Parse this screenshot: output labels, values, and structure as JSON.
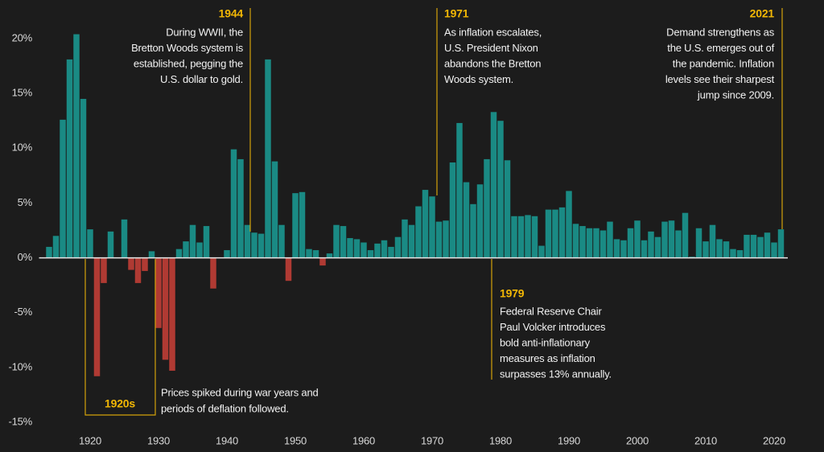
{
  "chart_data": {
    "type": "bar",
    "x": [
      1914,
      1915,
      1916,
      1917,
      1918,
      1919,
      1920,
      1921,
      1922,
      1923,
      1924,
      1925,
      1926,
      1927,
      1928,
      1929,
      1930,
      1931,
      1932,
      1933,
      1934,
      1935,
      1936,
      1937,
      1938,
      1939,
      1940,
      1941,
      1942,
      1943,
      1944,
      1945,
      1946,
      1947,
      1948,
      1949,
      1950,
      1951,
      1952,
      1953,
      1954,
      1955,
      1956,
      1957,
      1958,
      1959,
      1960,
      1961,
      1962,
      1963,
      1964,
      1965,
      1966,
      1967,
      1968,
      1969,
      1970,
      1971,
      1972,
      1973,
      1974,
      1975,
      1976,
      1977,
      1978,
      1979,
      1980,
      1981,
      1982,
      1983,
      1984,
      1985,
      1986,
      1987,
      1988,
      1989,
      1990,
      1991,
      1992,
      1993,
      1994,
      1995,
      1996,
      1997,
      1998,
      1999,
      2000,
      2001,
      2002,
      2003,
      2004,
      2005,
      2006,
      2007,
      2008,
      2009,
      2010,
      2011,
      2012,
      2013,
      2014,
      2015,
      2016,
      2017,
      2018,
      2019,
      2020,
      2021
    ],
    "values": [
      1.0,
      2.0,
      12.6,
      18.1,
      20.4,
      14.5,
      2.6,
      -10.8,
      -2.3,
      2.4,
      0.0,
      3.5,
      -1.1,
      -2.3,
      -1.2,
      0.6,
      -6.4,
      -9.3,
      -10.3,
      0.8,
      1.5,
      3.0,
      1.4,
      2.9,
      -2.8,
      0.0,
      0.7,
      9.9,
      9.0,
      3.0,
      2.3,
      2.2,
      18.1,
      8.8,
      3.0,
      -2.1,
      5.9,
      6.0,
      0.8,
      0.7,
      -0.7,
      0.4,
      3.0,
      2.9,
      1.8,
      1.7,
      1.4,
      0.7,
      1.3,
      1.6,
      1.0,
      1.9,
      3.5,
      3.0,
      4.7,
      6.2,
      5.6,
      3.3,
      3.4,
      8.7,
      12.3,
      6.9,
      4.9,
      6.7,
      9.0,
      13.3,
      12.5,
      8.9,
      3.8,
      3.8,
      3.9,
      3.8,
      1.1,
      4.4,
      4.4,
      4.6,
      6.1,
      3.1,
      2.9,
      2.7,
      2.7,
      2.5,
      3.3,
      1.7,
      1.6,
      2.7,
      3.4,
      1.6,
      2.4,
      1.9,
      3.3,
      3.4,
      2.5,
      4.1,
      0.1,
      2.7,
      1.5,
      3.0,
      1.7,
      1.5,
      0.8,
      0.7,
      2.1,
      2.1,
      1.9,
      2.3,
      1.4,
      2.6
    ],
    "positive_color": "#1a8a84",
    "negative_color": "#b03a33",
    "xlim": [
      1913,
      2022
    ],
    "xticks": [
      1920,
      1930,
      1940,
      1950,
      1960,
      1970,
      1980,
      1990,
      2000,
      2010,
      2020
    ],
    "ylim": [
      -15,
      20
    ],
    "yticks": [
      {
        "value": 20,
        "label": "20%"
      },
      {
        "value": 15,
        "label": "15%"
      },
      {
        "value": 10,
        "label": "10%"
      },
      {
        "value": 5,
        "label": "5%"
      },
      {
        "value": 0,
        "label": "0%"
      },
      {
        "value": -5,
        "label": "-5%"
      },
      {
        "value": -10,
        "label": "-10%"
      },
      {
        "value": -15,
        "label": "-15%"
      }
    ],
    "annotations": [
      {
        "title": "1944",
        "lines": [
          "During WWII, the",
          "Bretton Woods system is",
          "established, pegging the",
          "U.S. dollar to gold."
        ]
      },
      {
        "title": "1971",
        "lines": [
          "As inflation escalates,",
          "U.S. President Nixon",
          "abandons the Bretton",
          "Woods system."
        ]
      },
      {
        "title": "2021",
        "lines": [
          "Demand strengthens as",
          "the U.S. emerges out of",
          "the pandemic. Inflation",
          "levels see their sharpest",
          "jump since 2009."
        ]
      },
      {
        "title": "1979",
        "lines": [
          "Federal Reserve Chair",
          "Paul Volcker introduces",
          "bold anti-inflationary",
          "measures as inflation",
          "surpasses 13% annually."
        ]
      },
      {
        "title": "1920s",
        "lines": [
          "Prices spiked during war years and",
          "periods of deflation followed."
        ]
      }
    ]
  }
}
